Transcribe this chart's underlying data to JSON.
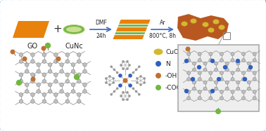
{
  "bg_color": "#ffffff",
  "border_color": "#5ba3d9",
  "go_color": "#e8820c",
  "cunc_color": "#7ab648",
  "cunc_fill": "#c8e090",
  "layer_orange": "#e8820c",
  "layer_green": "#7ab648",
  "product_color": "#b85820",
  "product_dot_color": "#d4b830",
  "arrow_color": "#4472c4",
  "label_go": "GO",
  "label_cunc": "CuNc",
  "label_dmf": "DMF",
  "label_24h": "24h",
  "label_ar": "Ar",
  "label_temp": "800°C, 8h",
  "legend_items": [
    "CuO",
    "N",
    "-OH",
    "-COOH"
  ],
  "legend_colors": [
    "#d4b830",
    "#3060c0",
    "#c07030",
    "#70b840"
  ],
  "atom_color": "#bbbbbb",
  "atom_edge": "#888888",
  "bond_color": "#999999",
  "n_color": "#3060c0",
  "oh_color": "#c07030",
  "cooh_color": "#70b840",
  "cu_color": "#c07030",
  "inset_bg": "#eeeeee",
  "inset_edge": "#aaaaaa"
}
